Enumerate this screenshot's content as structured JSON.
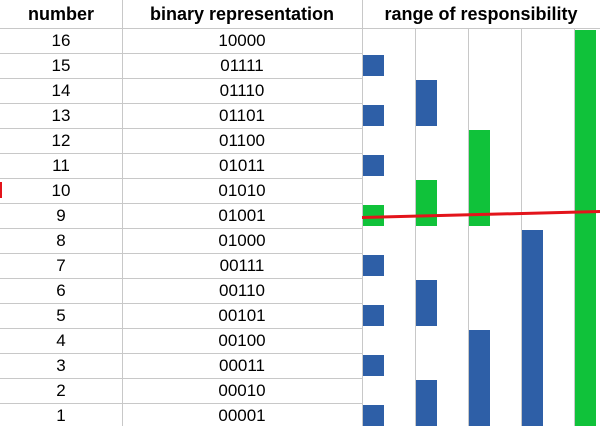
{
  "headers": {
    "number": "number",
    "binary": "binary representation",
    "range": "range of responsibility"
  },
  "rows": [
    {
      "number": "16",
      "binary": "10000"
    },
    {
      "number": "15",
      "binary": "01111"
    },
    {
      "number": "14",
      "binary": "01110"
    },
    {
      "number": "13",
      "binary": "01101"
    },
    {
      "number": "12",
      "binary": "01100"
    },
    {
      "number": "11",
      "binary": "01011"
    },
    {
      "number": "10",
      "binary": "01010"
    },
    {
      "number": "9",
      "binary": "01001"
    },
    {
      "number": "8",
      "binary": "01000"
    },
    {
      "number": "7",
      "binary": "00111"
    },
    {
      "number": "6",
      "binary": "00110"
    },
    {
      "number": "5",
      "binary": "00101"
    },
    {
      "number": "4",
      "binary": "00100"
    },
    {
      "number": "3",
      "binary": "00011"
    },
    {
      "number": "2",
      "binary": "00010"
    },
    {
      "number": "1",
      "binary": "00001"
    }
  ],
  "colors": {
    "blue": "#2e5fa7",
    "green": "#10c23a",
    "red": "#e3141b",
    "grid": "#c8c8c8",
    "text": "#000000"
  },
  "ranges": [
    {
      "number": 1,
      "from": 1,
      "to": 1,
      "level": 0,
      "color": "blue"
    },
    {
      "number": 3,
      "from": 3,
      "to": 3,
      "level": 0,
      "color": "blue"
    },
    {
      "number": 5,
      "from": 5,
      "to": 5,
      "level": 0,
      "color": "blue"
    },
    {
      "number": 7,
      "from": 7,
      "to": 7,
      "level": 0,
      "color": "blue"
    },
    {
      "number": 9,
      "from": 9,
      "to": 9,
      "level": 0,
      "color": "green"
    },
    {
      "number": 11,
      "from": 11,
      "to": 11,
      "level": 0,
      "color": "blue"
    },
    {
      "number": 13,
      "from": 13,
      "to": 13,
      "level": 0,
      "color": "blue"
    },
    {
      "number": 15,
      "from": 15,
      "to": 15,
      "level": 0,
      "color": "blue"
    },
    {
      "number": 2,
      "from": 1,
      "to": 2,
      "level": 1,
      "color": "blue"
    },
    {
      "number": 6,
      "from": 5,
      "to": 6,
      "level": 1,
      "color": "blue"
    },
    {
      "number": 10,
      "from": 9,
      "to": 10,
      "level": 1,
      "color": "green"
    },
    {
      "number": 14,
      "from": 13,
      "to": 14,
      "level": 1,
      "color": "blue"
    },
    {
      "number": 4,
      "from": 1,
      "to": 4,
      "level": 2,
      "color": "blue"
    },
    {
      "number": 12,
      "from": 9,
      "to": 12,
      "level": 2,
      "color": "green"
    },
    {
      "number": 8,
      "from": 1,
      "to": 8,
      "level": 3,
      "color": "blue"
    },
    {
      "number": 16,
      "from": 1,
      "to": 16,
      "level": 4,
      "color": "green"
    }
  ],
  "highlight": {
    "type": "line",
    "color": "red",
    "crosses_number": 9
  }
}
